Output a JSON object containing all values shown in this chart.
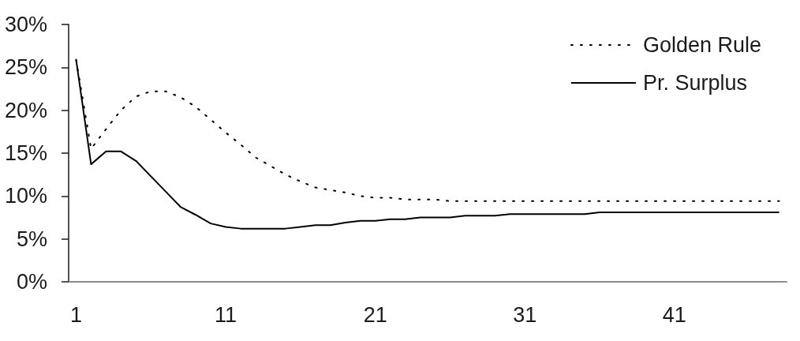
{
  "chart_data": {
    "type": "line",
    "categories": [
      "1",
      null,
      null,
      null,
      null,
      null,
      null,
      null,
      null,
      null,
      "11",
      null,
      null,
      null,
      null,
      null,
      null,
      null,
      null,
      null,
      "21",
      null,
      null,
      null,
      null,
      null,
      null,
      null,
      null,
      null,
      "31",
      null,
      null,
      null,
      null,
      null,
      null,
      null,
      null,
      null,
      "41",
      null,
      null,
      null,
      null,
      null,
      null,
      null
    ],
    "series": [
      {
        "name": "Golden Rule",
        "color": "#000000",
        "line_style": "dotted",
        "values": [
          25.9,
          15.5,
          17.8,
          20.0,
          21.6,
          22.2,
          22.2,
          21.5,
          20.4,
          18.9,
          17.4,
          16.0,
          14.5,
          13.5,
          12.5,
          11.7,
          11.0,
          10.7,
          10.4,
          10.0,
          9.8,
          9.8,
          9.6,
          9.6,
          9.6,
          9.4,
          9.4,
          9.4,
          9.4,
          9.4,
          9.4,
          9.4,
          9.4,
          9.4,
          9.4,
          9.4,
          9.4,
          9.4,
          9.4,
          9.4,
          9.4,
          9.4,
          9.4,
          9.4,
          9.4,
          9.4,
          9.4,
          9.4
        ]
      },
      {
        "name": "Pr. Surplus",
        "color": "#000000",
        "line_style": "solid",
        "values": [
          25.9,
          13.7,
          15.2,
          15.2,
          14.1,
          12.3,
          10.5,
          8.7,
          7.8,
          6.8,
          6.4,
          6.2,
          6.2,
          6.2,
          6.2,
          6.4,
          6.6,
          6.6,
          6.9,
          7.1,
          7.1,
          7.3,
          7.3,
          7.5,
          7.5,
          7.5,
          7.7,
          7.7,
          7.7,
          7.9,
          7.9,
          7.9,
          7.9,
          7.9,
          7.9,
          8.1,
          8.1,
          8.1,
          8.1,
          8.1,
          8.1,
          8.1,
          8.1,
          8.1,
          8.1,
          8.1,
          8.1,
          8.1
        ]
      }
    ],
    "ylim": [
      0,
      30
    ],
    "yticks": [
      {
        "value": 0,
        "label": "0%"
      },
      {
        "value": 5,
        "label": "5%"
      },
      {
        "value": 10,
        "label": "10%"
      },
      {
        "value": 15,
        "label": "15%"
      },
      {
        "value": 20,
        "label": "20%"
      },
      {
        "value": 25,
        "label": "25%"
      },
      {
        "value": 30,
        "label": "30%"
      }
    ],
    "grid": false,
    "legend": "top right",
    "marker": "none"
  }
}
